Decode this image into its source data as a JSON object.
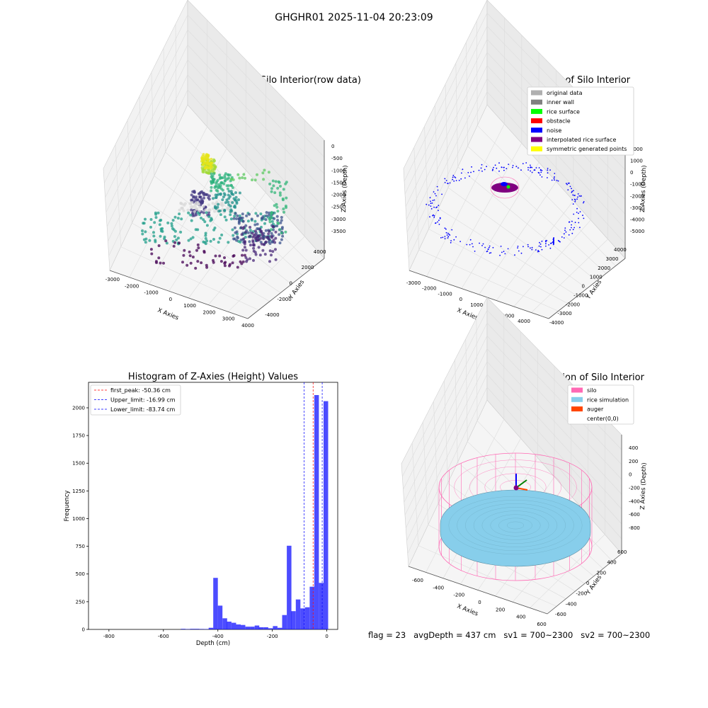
{
  "suptitle": "GHGHR01 2025-11-04 20:23:09",
  "footer": "flag = 23   avgDepth = 437 cm   sv1 = 700~2300   sv2 = 700~2300",
  "panels": {
    "raw": {
      "title": "3D Plot of Silo Interior(row data)",
      "xlabel": "X Axies",
      "ylabel": "Y Axies",
      "zlabel": "Z Axies (Depth)",
      "xticks": [
        "-3000",
        "-2000",
        "-1000",
        "0",
        "1000",
        "2000",
        "3000",
        "4000"
      ],
      "yticks": [
        "-4000",
        "-2000",
        "0",
        "2000",
        "4000"
      ],
      "zticks": [
        "0",
        "-500",
        "-1000",
        "-1500",
        "-2000",
        "-2500",
        "-3000",
        "-3500"
      ]
    },
    "classify": {
      "title": "3D classify of Silo Interior",
      "xlabel": "X Axies",
      "ylabel": "Y Axies",
      "zlabel": "Z Axies (Depth)",
      "xticks": [
        "-3000",
        "-2000",
        "-1000",
        "0",
        "1000",
        "2000",
        "3000",
        "4000"
      ],
      "yticks": [
        "-4000",
        "-3000",
        "-2000",
        "-1000",
        "0",
        "1000",
        "2000",
        "3000",
        "4000"
      ],
      "zticks": [
        "2000",
        "1000",
        "0",
        "-1000",
        "-2000",
        "-3000",
        "-4000",
        "-5000"
      ],
      "legend": [
        {
          "label": "original data",
          "color": "#b0b0b0"
        },
        {
          "label": "inner wall",
          "color": "#808080"
        },
        {
          "label": "rice surface",
          "color": "#00ff00"
        },
        {
          "label": "obstacle",
          "color": "#ff0000"
        },
        {
          "label": "noise",
          "color": "#0000ff"
        },
        {
          "label": "interpolated rice surface",
          "color": "#800080"
        },
        {
          "label": "symmetric generated points",
          "color": "#ffff00"
        }
      ]
    },
    "simulation": {
      "title": "3D simulation of Silo Interior",
      "xlabel": "X Axies",
      "ylabel": "Y Axies",
      "zlabel": "Z Axies (Depth)",
      "xticks": [
        "-600",
        "-400",
        "-200",
        "0",
        "200",
        "400",
        "600"
      ],
      "yticks": [
        "-600",
        "-400",
        "-200",
        "0",
        "200",
        "400",
        "600"
      ],
      "zticks": [
        "400",
        "200",
        "0",
        "-200",
        "-400",
        "-600",
        "-800"
      ],
      "legend": [
        {
          "label": "silo",
          "color": "#ff69b4"
        },
        {
          "label": "rice simulation",
          "color": "#87ceeb"
        },
        {
          "label": "auger",
          "color": "#ff4500"
        },
        {
          "label": "center(0,0)",
          "color": ""
        }
      ]
    }
  },
  "chart_data": {
    "type": "bar",
    "title": "Histogram of Z-Axies (Height) Values",
    "xlabel": "Depth (cm)",
    "ylabel": "Frequency",
    "xlim": [
      -875,
      40
    ],
    "ylim": [
      0,
      2230
    ],
    "xticks": [
      -800,
      -600,
      -400,
      -200,
      0
    ],
    "yticks": [
      0,
      250,
      500,
      750,
      1000,
      1250,
      1500,
      1750,
      2000
    ],
    "bar_color": "#0000ff",
    "bin_width": 16.8,
    "bins": [
      {
        "x": -536,
        "value": 5
      },
      {
        "x": -519,
        "value": 3
      },
      {
        "x": -502,
        "value": 5
      },
      {
        "x": -485,
        "value": 5
      },
      {
        "x": -468,
        "value": 4
      },
      {
        "x": -451,
        "value": 3
      },
      {
        "x": -434,
        "value": 15
      },
      {
        "x": -417,
        "value": 465
      },
      {
        "x": -400,
        "value": 215
      },
      {
        "x": -383,
        "value": 100
      },
      {
        "x": -367,
        "value": 70
      },
      {
        "x": -350,
        "value": 60
      },
      {
        "x": -333,
        "value": 45
      },
      {
        "x": -316,
        "value": 40
      },
      {
        "x": -299,
        "value": 25
      },
      {
        "x": -282,
        "value": 25
      },
      {
        "x": -265,
        "value": 35
      },
      {
        "x": -249,
        "value": 20
      },
      {
        "x": -232,
        "value": 20
      },
      {
        "x": -215,
        "value": 10
      },
      {
        "x": -198,
        "value": 30
      },
      {
        "x": -181,
        "value": 15
      },
      {
        "x": -164,
        "value": 130
      },
      {
        "x": -147,
        "value": 755
      },
      {
        "x": -131,
        "value": 165
      },
      {
        "x": -114,
        "value": 270
      },
      {
        "x": -97,
        "value": 190
      },
      {
        "x": -80,
        "value": 200
      },
      {
        "x": -63,
        "value": 385
      },
      {
        "x": -46,
        "value": 2115
      },
      {
        "x": -29,
        "value": 420
      },
      {
        "x": -12,
        "value": 2060
      }
    ],
    "vlines": [
      {
        "label": "first_peak: -50.36 cm",
        "x": -50.36,
        "color": "#ff0000"
      },
      {
        "label": "Upper_limit: -16.99 cm",
        "x": -16.99,
        "color": "#0000ff"
      },
      {
        "label": "Lower_limit: -83.74 cm",
        "x": -83.74,
        "color": "#0000ff"
      }
    ]
  }
}
